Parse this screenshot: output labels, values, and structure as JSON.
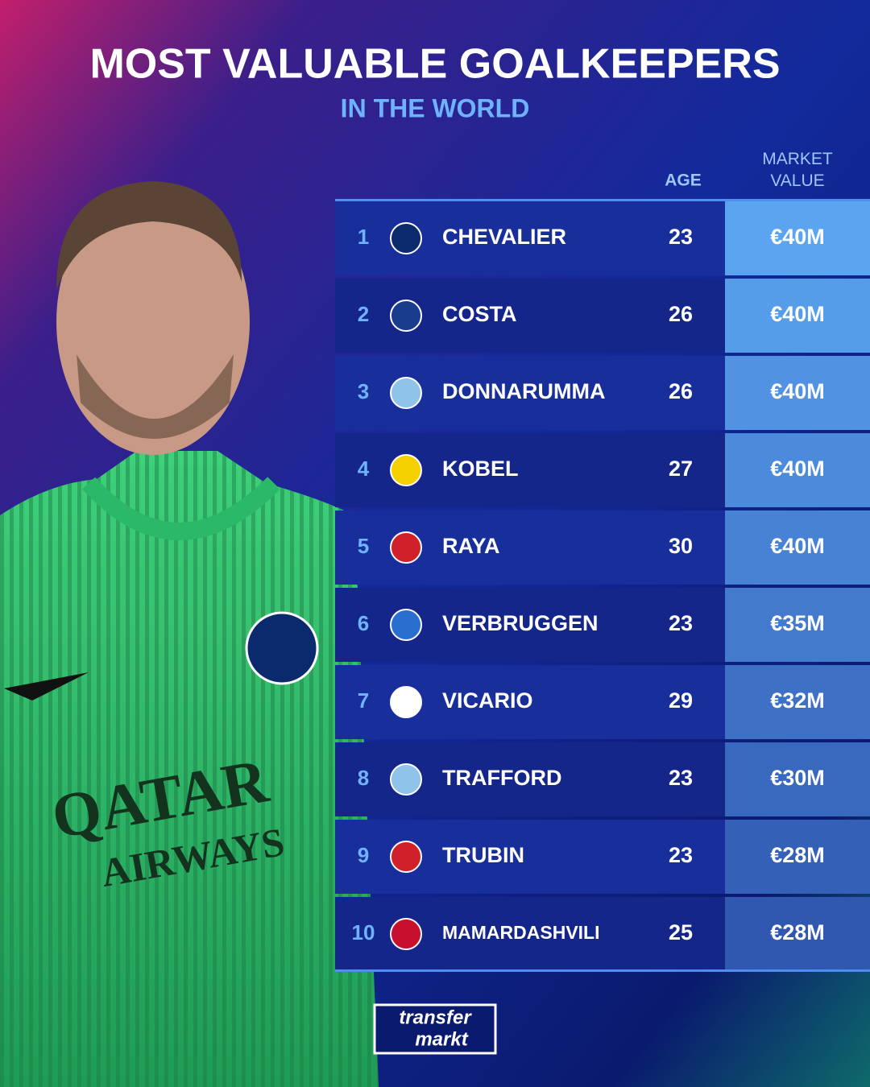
{
  "header": {
    "title": "MOST VALUABLE GOALKEEPERS",
    "subtitle": "IN THE WORLD"
  },
  "table": {
    "columns": [
      "AGE",
      "MARKET VALUE"
    ],
    "rows": [
      [
        1,
        "CHEVALIER",
        23,
        "€40M"
      ],
      [
        2,
        "COSTA",
        26,
        "€40M"
      ],
      [
        3,
        "DONNARUMMA",
        26,
        "€40M"
      ],
      [
        4,
        "KOBEL",
        27,
        "€40M"
      ],
      [
        5,
        "RAYA",
        30,
        "€40M"
      ],
      [
        6,
        "VERBRUGGEN",
        23,
        "€35M"
      ],
      [
        7,
        "VICARIO",
        29,
        "€32M"
      ],
      [
        8,
        "TRAFFORD",
        23,
        "€30M"
      ],
      [
        9,
        "TRUBIN",
        23,
        "€28M"
      ],
      [
        10,
        "MAMARDASHVILI",
        25,
        "€28M"
      ]
    ]
  },
  "footer": {
    "logo": [
      "transfer",
      "markt"
    ]
  }
}
